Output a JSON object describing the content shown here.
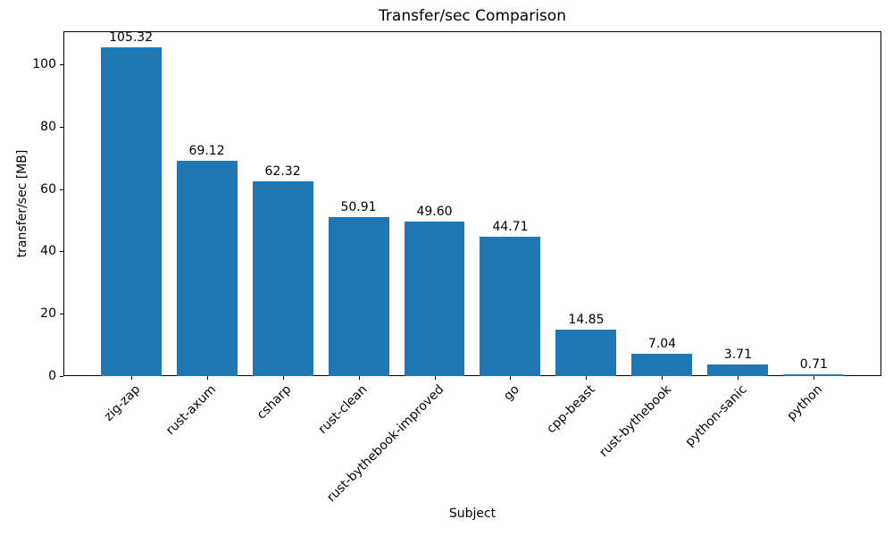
{
  "chart_data": {
    "type": "bar",
    "title": "Transfer/sec Comparison",
    "xlabel": "Subject",
    "ylabel": "transfer/sec [MB]",
    "categories": [
      "zig-zap",
      "rust-axum",
      "csharp",
      "rust-clean",
      "rust-bythebook-improved",
      "go",
      "cpp-beast",
      "rust-bythebook",
      "python-sanic",
      "python"
    ],
    "values": [
      105.32,
      69.12,
      62.32,
      50.91,
      49.6,
      44.71,
      14.85,
      7.04,
      3.71,
      0.71
    ],
    "value_label_decimals": 2,
    "yticks": [
      0,
      20,
      40,
      60,
      80,
      100
    ],
    "ylim": [
      0,
      110.6
    ],
    "bar_color": "#1f77b4",
    "axis_color": "#000000",
    "background_color": "#ffffff",
    "grid": false,
    "legend": null,
    "value_labels_shown": true,
    "xtick_rotation_deg": 45
  }
}
